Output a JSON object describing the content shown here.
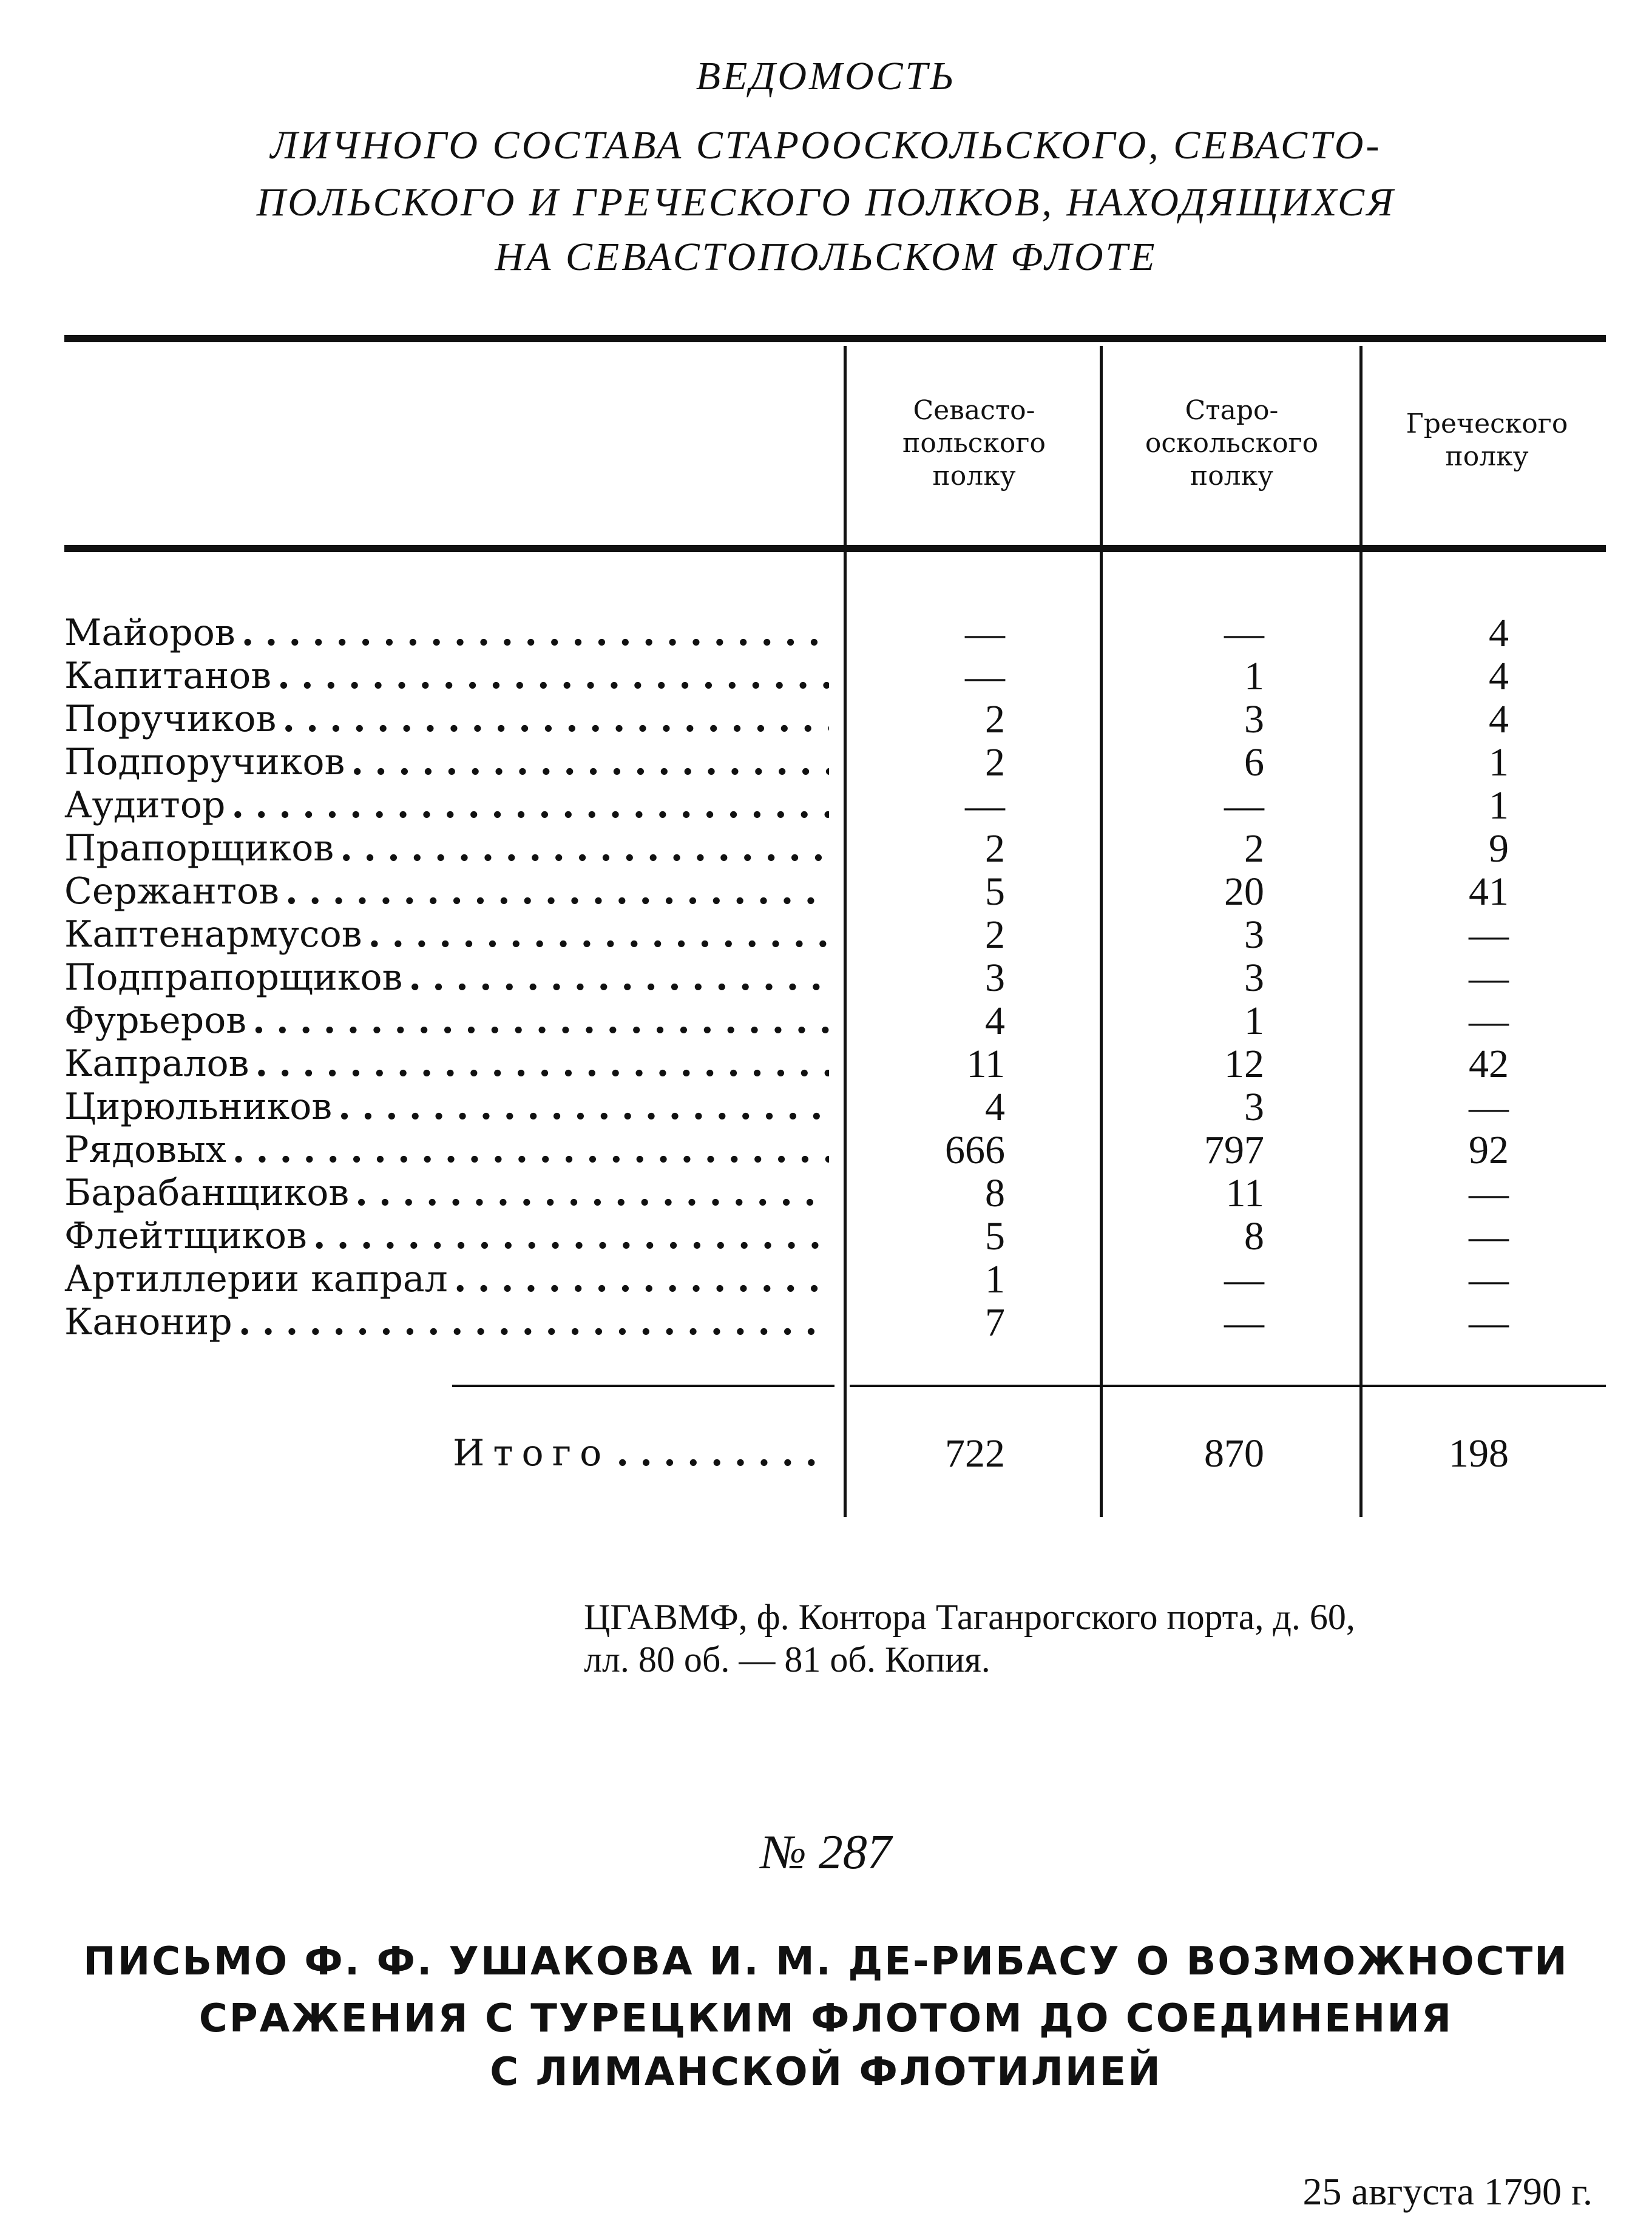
{
  "document": {
    "title": "ВЕДОМОСТЬ",
    "subtitle_lines": [
      "ЛИЧНОГО СОСТАВА СТАРООСКОЛЬСКОГО, СЕВАСТО-",
      "ПОЛЬСКОГО И ГРЕЧЕСКОГО ПОЛКОВ, НАХОДЯЩИХСЯ",
      "НА СЕВАСТОПОЛЬСКОМ ФЛОТЕ"
    ],
    "table": {
      "columns": [
        [
          "Севасто-",
          "польского",
          "полку"
        ],
        [
          "Старо-",
          "оскольского",
          "полку"
        ],
        [
          "Греческого",
          "полку"
        ]
      ],
      "rows": [
        {
          "label": "Майоров",
          "values": [
            "—",
            "—",
            "4"
          ]
        },
        {
          "label": "Капитанов",
          "values": [
            "—",
            "1",
            "4"
          ]
        },
        {
          "label": "Поручиков",
          "values": [
            "2",
            "3",
            "4"
          ]
        },
        {
          "label": "Подпоручиков",
          "values": [
            "2",
            "6",
            "1"
          ]
        },
        {
          "label": "Аудитор",
          "values": [
            "—",
            "—",
            "1"
          ]
        },
        {
          "label": "Прапорщиков",
          "values": [
            "2",
            "2",
            "9"
          ]
        },
        {
          "label": "Сержантов",
          "values": [
            "5",
            "20",
            "41"
          ]
        },
        {
          "label": "Каптенармусов",
          "values": [
            "2",
            "3",
            "—"
          ]
        },
        {
          "label": "Подпрапорщиков",
          "values": [
            "3",
            "3",
            "—"
          ]
        },
        {
          "label": "Фурьеров",
          "values": [
            "4",
            "1",
            "—"
          ]
        },
        {
          "label": "Капралов",
          "values": [
            "11",
            "12",
            "42"
          ]
        },
        {
          "label": "Цирюльников",
          "values": [
            "4",
            "3",
            "—"
          ]
        },
        {
          "label": "Рядовых",
          "values": [
            "666",
            "797",
            "92"
          ]
        },
        {
          "label": "Барабанщиков",
          "values": [
            "8",
            "11",
            "—"
          ]
        },
        {
          "label": "Флейтщиков",
          "values": [
            "5",
            "8",
            "—"
          ]
        },
        {
          "label": "Артиллерии капрал",
          "values": [
            "1",
            "—",
            "—"
          ]
        },
        {
          "label": "Канонир",
          "values": [
            "7",
            "—",
            "—"
          ]
        }
      ],
      "total": {
        "label": "Итого",
        "values": [
          "722",
          "870",
          "198"
        ]
      }
    },
    "citation_lines": [
      "ЦГАВМФ, ф. Контора Таганрогского порта, д. 60,",
      "лл. 80 об. — 81 об. Копия."
    ],
    "next_number": "№ 287",
    "next_heading_lines": [
      "ПИСЬМО Ф. Ф. УШАКОВА И. М. ДЕ-РИБАСУ О ВОЗМОЖНОСТИ",
      "СРАЖЕНИЯ С ТУРЕЦКИМ ФЛОТОМ ДО СОЕДИНЕНИЯ",
      "С ЛИМАНСКОЙ ФЛОТИЛИЕЙ"
    ],
    "date": "25 августа 1790 г."
  }
}
